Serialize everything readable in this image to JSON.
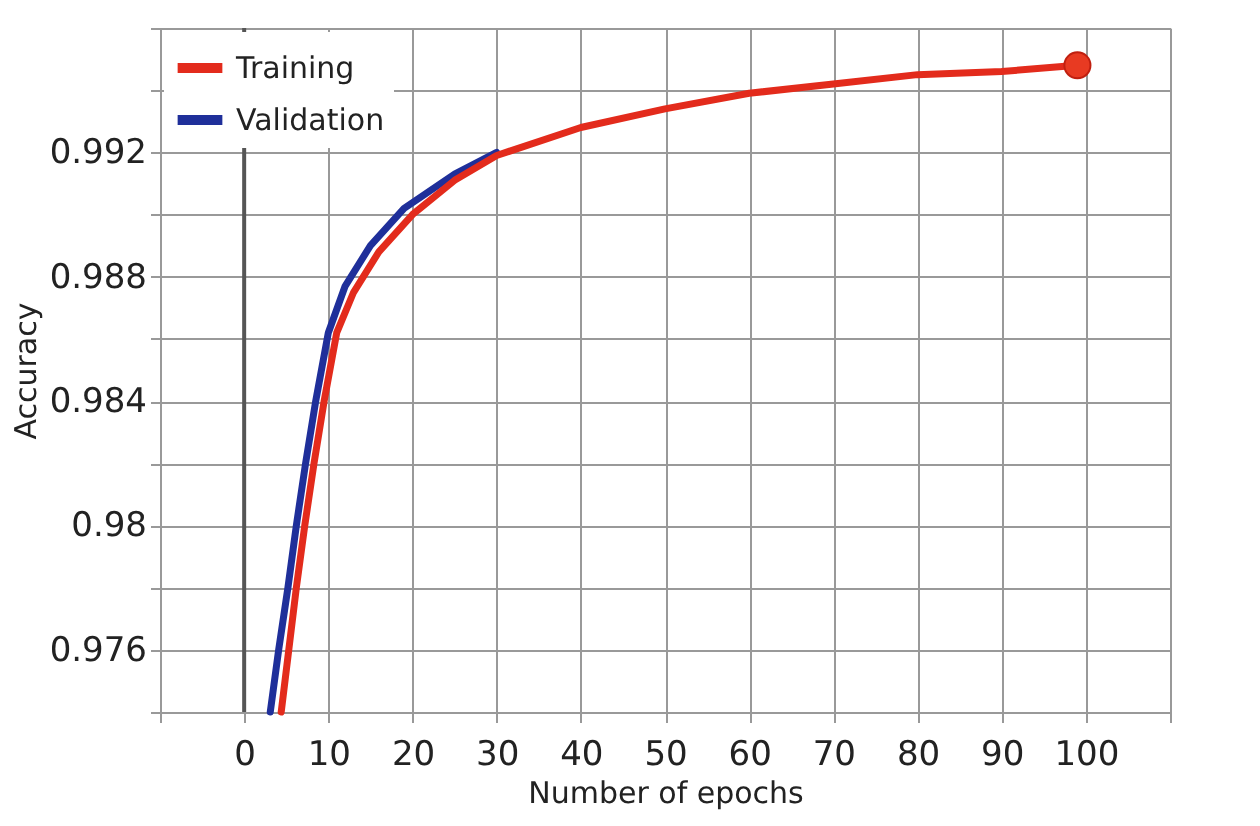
{
  "chart_data": {
    "type": "line",
    "xlabel": "Number of epochs",
    "ylabel": "Accuracy",
    "series": [
      {
        "name": "Training",
        "color": "#e32b1c",
        "x": [
          4.4,
          5.3,
          6.2,
          7.2,
          8.3,
          9.5,
          11,
          13,
          16,
          20,
          25,
          30,
          40,
          50,
          60,
          70,
          80,
          90,
          99
        ],
        "values": [
          0.974,
          0.976,
          0.978,
          0.98,
          0.982,
          0.984,
          0.9862,
          0.9875,
          0.9888,
          0.99,
          0.9911,
          0.9919,
          0.9928,
          0.9934,
          0.9939,
          0.9942,
          0.9945,
          0.9946,
          0.9948
        ]
      },
      {
        "name": "Validation",
        "color": "#1f2f9a",
        "x": [
          3.1,
          4.1,
          5.2,
          6.2,
          7.3,
          8.5,
          10,
          12,
          15,
          19,
          25,
          30
        ],
        "values": [
          0.974,
          0.976,
          0.978,
          0.98,
          0.982,
          0.984,
          0.9862,
          0.9877,
          0.989,
          0.9902,
          0.9913,
          0.992
        ]
      },
      {
        "type": "scatter",
        "marker": "circle",
        "color": "#e83a22",
        "x": [
          99
        ],
        "values": [
          0.9948
        ]
      }
    ],
    "xlim": [
      -10,
      110
    ],
    "xticks": [
      {
        "value": -10,
        "label": null
      },
      0,
      10,
      20,
      30,
      40,
      50,
      60,
      70,
      80,
      90,
      100,
      {
        "value": 110,
        "label": null
      }
    ],
    "ylim": [
      0.974,
      0.996
    ],
    "yticks": [
      {
        "value": 0.974,
        "label": null
      },
      0.976,
      {
        "value": 0.978,
        "label": null
      },
      0.98,
      {
        "value": 0.982,
        "label": null
      },
      0.984,
      {
        "value": 0.986,
        "label": null
      },
      0.988,
      {
        "value": 0.99,
        "label": null
      },
      0.992,
      {
        "value": 0.994,
        "label": null
      },
      {
        "value": 0.996,
        "label": null
      }
    ],
    "ref_lines": [
      {
        "axis": "x",
        "value": 0,
        "color": "#555555"
      }
    ],
    "grid": true,
    "legend": "top left",
    "marker": "none",
    "line_style": "solid"
  }
}
